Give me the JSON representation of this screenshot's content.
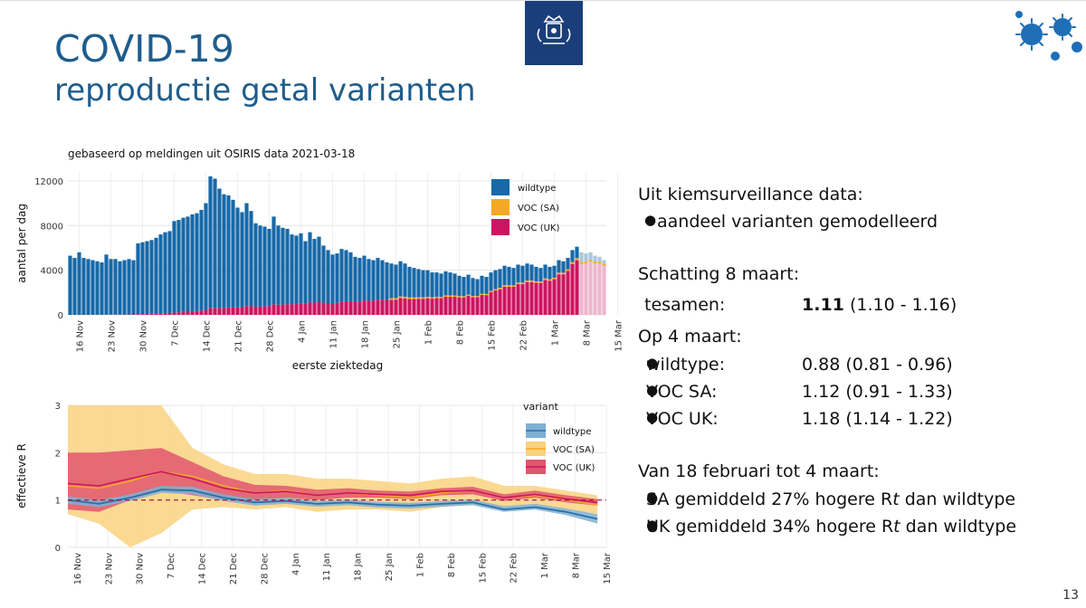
{
  "slide": {
    "title": "COVID-19",
    "subtitle": "reproductie getal varianten",
    "page_number": "13"
  },
  "right": {
    "heading1": "Uit kiemsurveillance data:",
    "bullet1": "aandeel varianten gemodelleerd",
    "heading2": "Schatting 8 maart:",
    "together_label": "tesamen:",
    "together_value_bold": "1.11",
    "together_value_ci": "(1.10 - 1.16)",
    "heading3": "Op 4 maart:",
    "rows": [
      {
        "label": "wildtype:",
        "value": "0.88 (0.81 - 0.96)"
      },
      {
        "label": "VOC SA:",
        "value": "1.12 (0.91 - 1.33)"
      },
      {
        "label": "VOC UK:",
        "value": "1.18 (1.14 - 1.22)"
      }
    ],
    "heading4": "Van 18 februari tot 4 maart:",
    "sa_pre": "SA gemiddeld 27% hogere R",
    "sa_t": "t",
    "sa_post": " dan wildtype",
    "uk_pre": "UK gemiddeld 34% hogere R",
    "uk_t": "t",
    "uk_post": " dan wildtype"
  },
  "chart_data": [
    {
      "type": "bar",
      "stacked": true,
      "title": "gebaseerd op meldingen uit OSIRIS data 2021-03-18",
      "xlabel": "eerste ziektedag",
      "ylabel": "aantal per dag",
      "ylim": [
        0,
        12800
      ],
      "yticks": [
        0,
        4000,
        8000,
        12000
      ],
      "xticks": [
        "16 Nov",
        "23 Nov",
        "30 Nov",
        "7 Dec",
        "14 Dec",
        "21 Dec",
        "28 Dec",
        "4 Jan",
        "11 Jan",
        "18 Jan",
        "25 Jan",
        "1 Feb",
        "8 Feb",
        "15 Feb",
        "22 Feb",
        "1 Mar",
        "8 Mar",
        "15 Mar"
      ],
      "start_label": "14 Nov",
      "partial_from_index": 113,
      "legend": [
        "wildtype",
        "VOC (SA)",
        "VOC (UK)"
      ],
      "colors": {
        "wildtype": "#1769a8",
        "sa": "#f5a823",
        "uk": "#cc1560",
        "wildtype_faded": "#a9c8de",
        "uk_faded": "#eeb6cc"
      },
      "totals": [
        5300,
        5100,
        5600,
        5100,
        5000,
        4900,
        4800,
        4700,
        5400,
        5000,
        5000,
        4800,
        4900,
        5000,
        4900,
        6400,
        6500,
        6600,
        6700,
        6900,
        7200,
        7400,
        7500,
        8400,
        8500,
        8700,
        8800,
        9000,
        9100,
        9400,
        10000,
        12400,
        12200,
        11300,
        10800,
        10700,
        10300,
        9600,
        9200,
        10000,
        9300,
        8200,
        8000,
        7900,
        7700,
        8800,
        8000,
        7800,
        7700,
        7200,
        7100,
        7300,
        6600,
        7400,
        6800,
        7000,
        6200,
        5800,
        5400,
        5500,
        5900,
        5800,
        5600,
        5200,
        5100,
        5300,
        5000,
        4900,
        5100,
        4900,
        4700,
        4600,
        4500,
        4800,
        4600,
        4300,
        4200,
        4100,
        4000,
        4000,
        3800,
        3800,
        3700,
        3900,
        3800,
        3700,
        3500,
        3400,
        3600,
        3300,
        3200,
        3500,
        3400,
        3800,
        4000,
        4100,
        4400,
        4300,
        4200,
        4500,
        4400,
        4600,
        4500,
        4300,
        4200,
        4500,
        4300,
        4400,
        4900,
        4800,
        5100,
        5800,
        6100,
        5600,
        5500,
        5600,
        5300,
        5200,
        4900
      ],
      "uk_share_start": 0.0,
      "uk_share_end": 0.9,
      "sa_share": 0.03
    },
    {
      "type": "line",
      "ylabel": "effectieve R",
      "legend_title": "variant",
      "legend": [
        "wildtype",
        "VOC (SA)",
        "VOC (UK)"
      ],
      "ylim": [
        0,
        3
      ],
      "yticks": [
        0,
        1,
        2,
        3
      ],
      "xticks": [
        "16 Nov",
        "23 Nov",
        "30 Nov",
        "7 Dec",
        "14 Dec",
        "21 Dec",
        "28 Dec",
        "4 Jan",
        "11 Jan",
        "18 Jan",
        "25 Jan",
        "1 Feb",
        "8 Feb",
        "15 Feb",
        "22 Feb",
        "1 Mar",
        "8 Mar",
        "15 Mar"
      ],
      "reference_line": 1.0,
      "colors": {
        "wildtype": "#2b6fa8",
        "wildtype_band": "#7fb0d3",
        "sa": "#f5a823",
        "sa_band": "#f9d27f",
        "uk": "#cc1560",
        "uk_band": "#e0566f"
      },
      "series": [
        {
          "name": "wildtype",
          "x": [
            0,
            7,
            14,
            21,
            28,
            35,
            42,
            49,
            56,
            63,
            70,
            77,
            84,
            91,
            98,
            105,
            112,
            119
          ],
          "y": [
            1.0,
            0.92,
            1.05,
            1.22,
            1.2,
            1.05,
            0.95,
            0.98,
            0.92,
            0.95,
            0.9,
            0.88,
            0.92,
            0.95,
            0.8,
            0.85,
            0.75,
            0.6
          ],
          "lo": [
            0.92,
            0.85,
            0.98,
            1.15,
            1.12,
            0.98,
            0.88,
            0.92,
            0.86,
            0.89,
            0.84,
            0.82,
            0.86,
            0.89,
            0.75,
            0.8,
            0.68,
            0.5
          ],
          "hi": [
            1.08,
            1.0,
            1.12,
            1.3,
            1.28,
            1.12,
            1.02,
            1.05,
            0.98,
            1.01,
            0.96,
            0.94,
            0.98,
            1.01,
            0.87,
            0.92,
            0.82,
            0.7
          ]
        },
        {
          "name": "VOC (SA)",
          "x": [
            0,
            7,
            14,
            21,
            28,
            35,
            42,
            49,
            56,
            63,
            70,
            77,
            84,
            91,
            98,
            105,
            112,
            119
          ],
          "y": [
            1.3,
            1.25,
            1.4,
            1.6,
            1.5,
            1.3,
            1.15,
            1.2,
            1.1,
            1.15,
            1.1,
            1.05,
            1.15,
            1.2,
            1.05,
            1.1,
            1.0,
            0.9
          ],
          "lo": [
            0.7,
            0.5,
            0.0,
            0.3,
            0.8,
            0.85,
            0.8,
            0.85,
            0.75,
            0.8,
            0.8,
            0.75,
            0.85,
            0.9,
            0.85,
            0.9,
            0.8,
            0.7
          ],
          "hi": [
            3.0,
            3.0,
            3.0,
            3.0,
            2.1,
            1.75,
            1.55,
            1.55,
            1.45,
            1.45,
            1.4,
            1.35,
            1.45,
            1.5,
            1.3,
            1.3,
            1.2,
            1.1
          ]
        },
        {
          "name": "VOC (UK)",
          "x": [
            0,
            7,
            14,
            21,
            28,
            35,
            42,
            49,
            56,
            63,
            70,
            77,
            84,
            91,
            98,
            105,
            112,
            119
          ],
          "y": [
            1.35,
            1.3,
            1.45,
            1.6,
            1.45,
            1.25,
            1.15,
            1.18,
            1.1,
            1.15,
            1.12,
            1.1,
            1.18,
            1.2,
            1.05,
            1.12,
            1.02,
            0.95
          ],
          "lo": [
            0.8,
            0.75,
            1.0,
            1.2,
            1.1,
            1.0,
            1.0,
            1.05,
            1.0,
            1.05,
            1.05,
            1.02,
            1.1,
            1.12,
            0.98,
            1.05,
            0.95,
            0.88
          ],
          "hi": [
            2.0,
            2.0,
            2.05,
            2.1,
            1.8,
            1.5,
            1.32,
            1.3,
            1.22,
            1.25,
            1.2,
            1.18,
            1.25,
            1.28,
            1.12,
            1.2,
            1.1,
            1.02
          ]
        }
      ]
    }
  ]
}
